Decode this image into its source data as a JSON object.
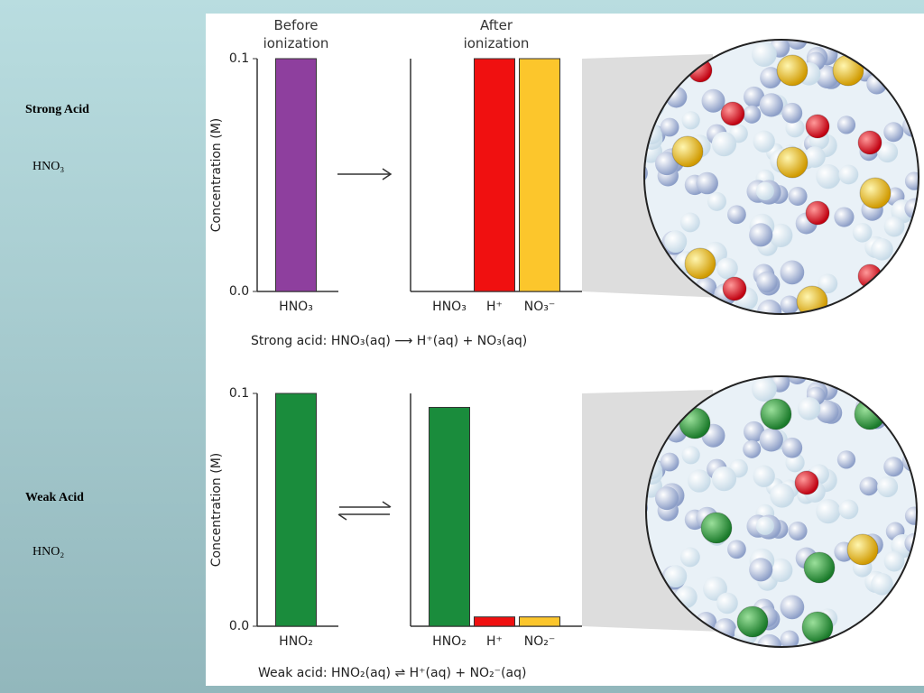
{
  "slide": {
    "sections": [
      {
        "heading": "Strong Acid",
        "formula": "HNO₃"
      },
      {
        "heading": "Weak Acid",
        "formula": "HNO₂"
      }
    ]
  },
  "chart_data": [
    {
      "type": "bar",
      "title": "Before ionization",
      "ylabel": "Concentration (M)",
      "categories": [
        "HNO₃"
      ],
      "values": [
        0.1
      ],
      "colors": [
        "#8e3f9e"
      ],
      "ylim": [
        0,
        0.1
      ],
      "yticks": [
        {
          "value": 0,
          "label": "0.0"
        },
        {
          "value": 0.1,
          "label": "0.1"
        }
      ],
      "caption": "Strong acid:  HNO₃(aq) ⟶ H⁺(aq) + NO₃(aq)"
    },
    {
      "type": "bar",
      "title": "After ionization",
      "categories": [
        "HNO₃",
        "H⁺",
        "NO₃⁻"
      ],
      "values": [
        0,
        0.1,
        0.1
      ],
      "colors": [
        "#8e3f9e",
        "#f01010",
        "#fcc62c"
      ],
      "ylim": [
        0,
        0.1
      ]
    },
    {
      "type": "bar",
      "ylabel": "Concentration (M)",
      "categories": [
        "HNO₂"
      ],
      "values": [
        0.1
      ],
      "colors": [
        "#1a8c3c"
      ],
      "ylim": [
        0,
        0.1
      ],
      "yticks": [
        {
          "value": 0,
          "label": "0.0"
        },
        {
          "value": 0.1,
          "label": "0.1"
        }
      ],
      "caption": "Weak acid:  HNO₂(aq) ⇌ H⁺(aq) + NO₂⁻(aq)"
    },
    {
      "type": "bar",
      "categories": [
        "HNO₂",
        "H⁺",
        "NO₂⁻"
      ],
      "values": [
        0.094,
        0.004,
        0.004
      ],
      "colors": [
        "#1a8c3c",
        "#f01010",
        "#fcc62c"
      ],
      "ylim": [
        0,
        0.1
      ]
    }
  ]
}
